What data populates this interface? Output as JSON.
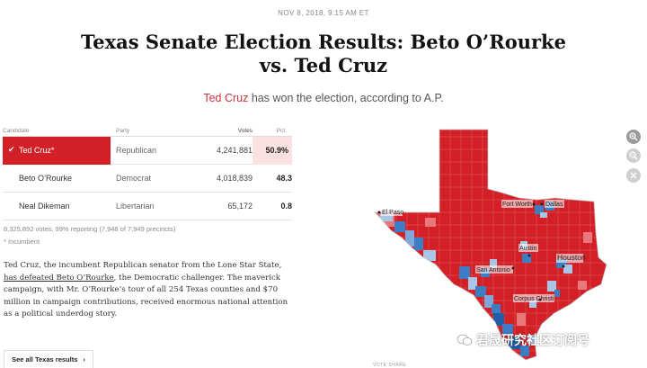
{
  "timestamp": "NOV 8, 2018, 9:15 AM ET",
  "headline": {
    "line1": "Texas Senate Election Results: Beto O’Rourke",
    "line2": "vs. Ted Cruz"
  },
  "subhead": {
    "winner": "Ted Cruz",
    "rest": " has won the election, according to A.P."
  },
  "table": {
    "headers": {
      "candidate": "Candidate",
      "party": "Party",
      "votes": "Votes",
      "pct": "Pct."
    },
    "rows": [
      {
        "name": "Ted Cruz*",
        "party": "Republican",
        "votes": "4,241,881",
        "pct": "50.9%"
      },
      {
        "name": "Beto O’Rourke",
        "party": "Democrat",
        "votes": "4,018,839",
        "pct": "48.3"
      },
      {
        "name": "Neal Dikeman",
        "party": "Libertarian",
        "votes": "65,172",
        "pct": "0.8"
      }
    ]
  },
  "reporting": "8,325,892 votes, 99% reporting (7,948 of 7,949 precincts)",
  "incumbent_note": "* Incumbent",
  "body": {
    "part1": "Ted Cruz, the incumbent Republican senator from the Lone Star State, ",
    "link": "has defeated Beto O’Rourke",
    "part2": ", the Democratic challenger. The maverick campaign, with Mr. O’Rourke’s tour of all 254 Texas counties and $70 million in campaign contributions, received enormous national attention as a political underdog story."
  },
  "see_all": {
    "label": "See all Texas results",
    "chevron": "›"
  },
  "map": {
    "cities": {
      "el_paso": "El Paso",
      "fort_worth": "Fort Worth",
      "dallas": "Dallas",
      "austin": "Austin",
      "houston": "Houston",
      "san_antonio": "San Antonio",
      "corpus_christi": "Corpus Christi"
    },
    "colors": {
      "rep": "#d32027",
      "rep_light": "#e9787b",
      "dem": "#3c7dc4",
      "dem_light": "#a9c6e6"
    },
    "footer_label": "VOTE SHARE"
  },
  "controls": {
    "zoom_in": "zoom-in-icon",
    "zoom_out": "zoom-out-icon",
    "reset": "close-icon"
  },
  "watermark": "君晟研究社区订阅号"
}
